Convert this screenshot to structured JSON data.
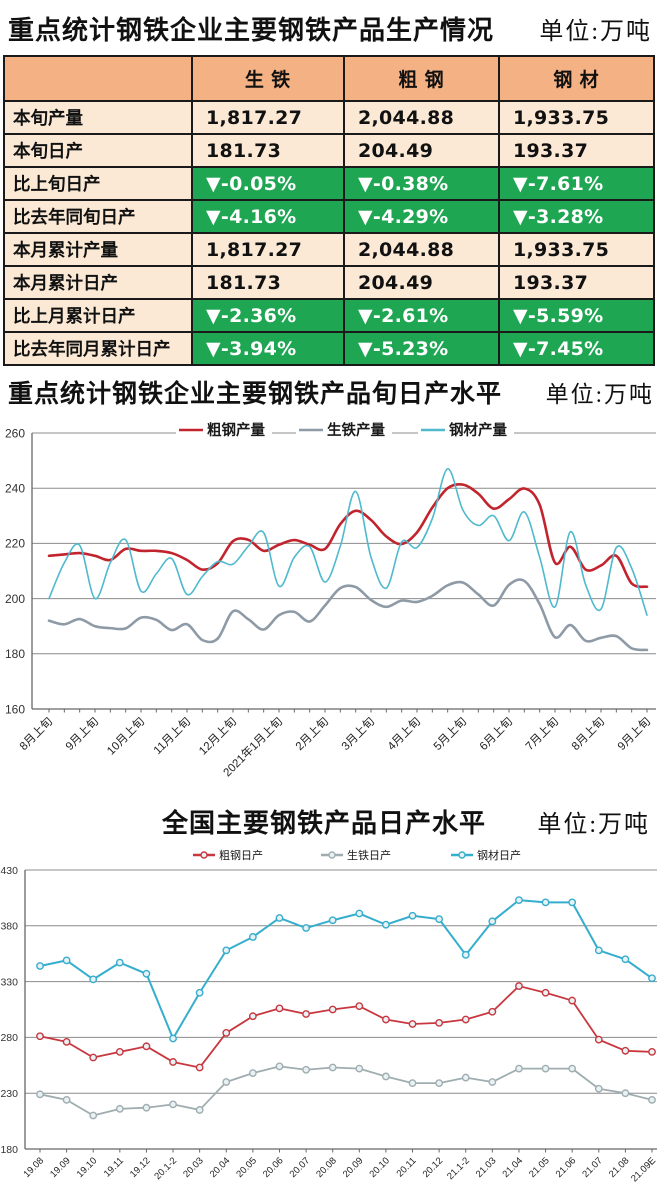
{
  "table_section": {
    "title": "重点统计钢铁企业主要钢铁产品生产情况",
    "unit": "单位:万吨",
    "header": [
      "",
      "生 铁",
      "粗 钢",
      "钢 材"
    ],
    "rows": [
      {
        "label": "本旬产量",
        "type": "plain",
        "values": [
          "1,817.27",
          "2,044.88",
          "1,933.75"
        ]
      },
      {
        "label": "本旬日产",
        "type": "plain",
        "values": [
          "181.73",
          "204.49",
          "193.37"
        ]
      },
      {
        "label": "比上旬日产",
        "type": "down",
        "values": [
          "▼-0.05%",
          "▼-0.38%",
          "▼-7.61%"
        ]
      },
      {
        "label": "比去年同旬日产",
        "type": "down",
        "values": [
          "▼-4.16%",
          "▼-4.29%",
          "▼-3.28%"
        ]
      },
      {
        "label": "本月累计产量",
        "type": "plain",
        "values": [
          "1,817.27",
          "2,044.88",
          "1,933.75"
        ]
      },
      {
        "label": "本月累计日产",
        "type": "plain",
        "values": [
          "181.73",
          "204.49",
          "193.37"
        ]
      },
      {
        "label": "比上月累计日产",
        "type": "down",
        "values": [
          "▼-2.36%",
          "▼-2.61%",
          "▼-5.59%"
        ]
      },
      {
        "label": "比去年同月累计日产",
        "type": "down",
        "values": [
          "▼-3.94%",
          "▼-5.23%",
          "▼-7.45%"
        ]
      }
    ],
    "colors": {
      "header_bg": "#F4B183",
      "cell_bg": "#FBE9D6",
      "down_bg": "#1FA653",
      "down_text": "#FFFFFF",
      "border": "#1A1A1A"
    }
  },
  "chart_data": [
    {
      "type": "line",
      "title": "重点统计钢铁企业主要钢铁产品旬日产水平",
      "unit_label": "单位:万吨",
      "smooth": true,
      "markers": false,
      "grid": true,
      "legend_position": "top",
      "ylim": [
        160,
        260
      ],
      "y_step": 20,
      "x_labels": [
        "8月上旬",
        "9月上旬",
        "10月上旬",
        "11月上旬",
        "12月上旬",
        "2021年1月上旬",
        "2月上旬",
        "3月上旬",
        "4月上旬",
        "5月上旬",
        "6月上旬",
        "7月上旬",
        "8月上旬",
        "9月上旬"
      ],
      "x_label_positions": [
        0,
        3,
        6,
        9,
        12,
        15,
        18,
        21,
        24,
        27,
        30,
        33,
        36,
        39
      ],
      "series": [
        {
          "name": "粗钢产量",
          "color": "#C2242D",
          "width": 2.6,
          "values": [
            215.5,
            216,
            216.5,
            215.5,
            214,
            218,
            217.3,
            217.3,
            216.5,
            214,
            210.5,
            212.8,
            220.8,
            221.3,
            217.3,
            219.5,
            221.2,
            219.5,
            218,
            227,
            231.8,
            228.5,
            222.5,
            219.8,
            224,
            233,
            240,
            241.3,
            238,
            232.6,
            236,
            239.9,
            234,
            213,
            218.8,
            210.5,
            212,
            215.5,
            205.5,
            204.3
          ]
        },
        {
          "name": "生铁产量",
          "color": "#8E9BA6",
          "width": 2.6,
          "values": [
            192,
            190.7,
            192.6,
            190,
            189.3,
            189.2,
            193.1,
            192.3,
            188.6,
            190.7,
            185,
            185.5,
            195.4,
            192.5,
            188.8,
            194,
            195.2,
            191.7,
            197.5,
            203.8,
            204.2,
            199.5,
            197,
            199.3,
            198.8,
            201,
            204.8,
            205.8,
            201.5,
            197.5,
            205,
            206.4,
            198,
            186,
            190.4,
            184.7,
            185.8,
            186.4,
            182,
            181.4
          ]
        },
        {
          "name": "钢材产量",
          "color": "#4FB9CE",
          "width": 1.6,
          "values": [
            200,
            213,
            219.3,
            200,
            213,
            221.3,
            202.7,
            209,
            214.5,
            201.5,
            208,
            213.4,
            212.5,
            219,
            223.9,
            204.5,
            215,
            218.8,
            206,
            219,
            238.8,
            215,
            203.8,
            220.5,
            218.5,
            229,
            247,
            232,
            226.5,
            230,
            221,
            231.4,
            215,
            197,
            224.2,
            205,
            196.2,
            218.5,
            211,
            194
          ]
        }
      ]
    },
    {
      "type": "line",
      "title": "全国主要钢铁产品日产水平",
      "unit_label": "单位:万吨",
      "smooth": false,
      "markers": true,
      "grid": true,
      "legend_position": "top",
      "ylim": [
        180,
        430
      ],
      "y_step": 50,
      "x_labels": [
        "19.08",
        "19.09",
        "19.10",
        "19.11",
        "19.12",
        "20.1-2",
        "20.03",
        "20.04",
        "20.05",
        "20.06",
        "20.07",
        "20.08",
        "20.09",
        "20.10",
        "20.11",
        "20.12",
        "21.1-2",
        "21.03",
        "21.04",
        "21.05",
        "21.06",
        "21.07",
        "21.08",
        "21.09E"
      ],
      "series": [
        {
          "name": "粗钢日产",
          "color": "#C8373F",
          "width": 1.8,
          "values": [
            281,
            276,
            262,
            267,
            272,
            258,
            253,
            284,
            299,
            306,
            301,
            305,
            308,
            296,
            292,
            293,
            296,
            303,
            326,
            320,
            313,
            278,
            268,
            267
          ]
        },
        {
          "name": "生铁日产",
          "color": "#9FADB0",
          "width": 1.8,
          "values": [
            229,
            224,
            210,
            216,
            217,
            220,
            215,
            240,
            248,
            254,
            251,
            253,
            252,
            245,
            239,
            239,
            244,
            240,
            252,
            252,
            252,
            234,
            230,
            224
          ]
        },
        {
          "name": "钢材日产",
          "color": "#35AECE",
          "width": 2,
          "values": [
            344,
            349,
            332,
            347,
            337,
            279,
            320,
            358,
            370,
            387,
            378,
            385,
            391,
            381,
            389,
            386,
            354,
            384,
            403,
            401,
            401,
            358,
            350,
            333
          ]
        }
      ]
    }
  ]
}
